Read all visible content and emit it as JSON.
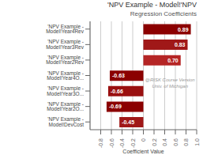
{
  "chart_data": {
    "type": "bar",
    "orientation": "horizontal",
    "title": "'NPV Example - Model!'NPV",
    "subtitle": "Regression Coefficients",
    "xlabel": "Coefficient Value",
    "categories": [
      "'NPV Example - Model!Year4Rev",
      "'NPV Example - Model!Year3Rev",
      "'NPV Example - Model!Year2Rev",
      "'NPV Example - Model!Year4O...",
      "'NPV Example - Model!Year3O...",
      "'NPV Example - Model!Year2O...",
      "'NPV Example - Model!DevCost"
    ],
    "values": [
      0.89,
      0.83,
      0.7,
      -0.63,
      -0.66,
      -0.69,
      -0.45
    ],
    "value_labels": [
      "0.89",
      "0.83",
      "0.70",
      "-0.63",
      "-0.66",
      "-0.69",
      "-0.45"
    ],
    "data_labels": true,
    "colors": [
      "#8B0000",
      "#A01818",
      "#B52525",
      "#8B0000",
      "#9A1010",
      "#8B0000",
      "#A01818"
    ],
    "xlim": [
      -1.0,
      1.0
    ],
    "xticks": [
      -0.8,
      -0.6,
      -0.4,
      -0.2,
      0,
      0.2,
      0.4,
      0.6,
      0.8,
      {
        "value": 1.0,
        "label": "1.0"
      }
    ],
    "grid": true,
    "annotations": [
      "@RISK Course Version",
      "Univ. of Michigan"
    ]
  }
}
